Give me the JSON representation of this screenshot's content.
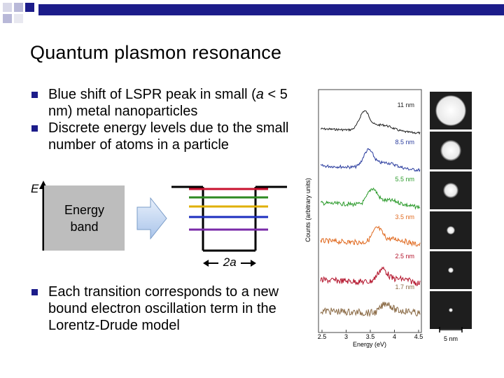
{
  "slide": {
    "title": "Quantum plasmon resonance",
    "bullets": [
      {
        "pre": "Blue shift of LSPR peak in small (",
        "italic": "a",
        "post": " < 5 nm) metal nanoparticles"
      },
      {
        "pre": "Discrete energy levels due to the small number of atoms in a particle",
        "italic": "",
        "post": ""
      }
    ],
    "bottom_bullet": "Each transition corresponds to a new bound electron oscillation term in the Lorentz-Drude model"
  },
  "diagram": {
    "axis_label": "E",
    "band_label_line1": "Energy",
    "band_label_line2": "band",
    "size_label_italic": "2a",
    "level_colors": [
      "#c8102e",
      "#2e8b22",
      "#e0b000",
      "#1d2fbf",
      "#7a2aa8"
    ]
  },
  "figure": {
    "y_axis_label": "Counts (arbitrary units)",
    "x_axis_label": "Energy (eV)",
    "x_ticks": [
      "2.5",
      "3",
      "3.5",
      "4",
      "4.5"
    ],
    "scale_bar_label": "5 nm",
    "spectra": [
      {
        "size": "11 nm",
        "color": "#222222"
      },
      {
        "size": "8.5 nm",
        "color": "#2a3c9e"
      },
      {
        "size": "5.5 nm",
        "color": "#2a9a2a"
      },
      {
        "size": "3.5 nm",
        "color": "#e06a20"
      },
      {
        "size": "2.5 nm",
        "color": "#b3122a"
      },
      {
        "size": "1.7 nm",
        "color": "#8a6a45"
      }
    ]
  }
}
